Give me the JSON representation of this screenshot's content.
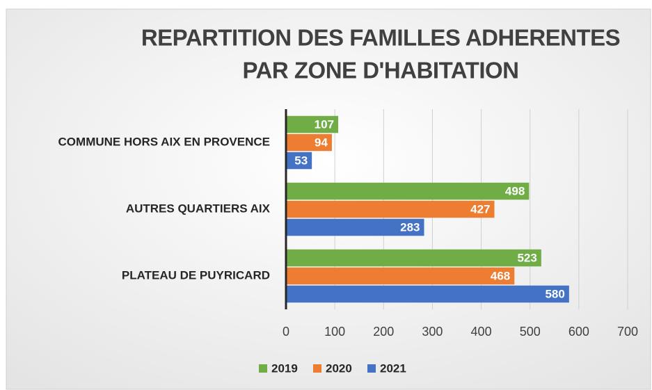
{
  "chart_data": {
    "type": "hbar",
    "title": [
      "REPARTITION DES FAMILLES ADHERENTES",
      "PAR ZONE D'HABITATION"
    ],
    "categories": [
      "COMMUNE  HORS AIX EN PROVENCE",
      "AUTRES QUARTIERS AIX",
      "PLATEAU DE PUYRICARD"
    ],
    "series": [
      {
        "name": "2019",
        "color": "#70ad47",
        "values": [
          107,
          498,
          523
        ]
      },
      {
        "name": "2020",
        "color": "#ed7d31",
        "values": [
          94,
          427,
          468
        ]
      },
      {
        "name": "2021",
        "color": "#4472c4",
        "values": [
          53,
          283,
          580
        ]
      }
    ],
    "xlim": [
      0,
      700
    ],
    "xticks": [
      0,
      100,
      200,
      300,
      400,
      500,
      600,
      700
    ],
    "grid": true,
    "legend": "bottom"
  }
}
